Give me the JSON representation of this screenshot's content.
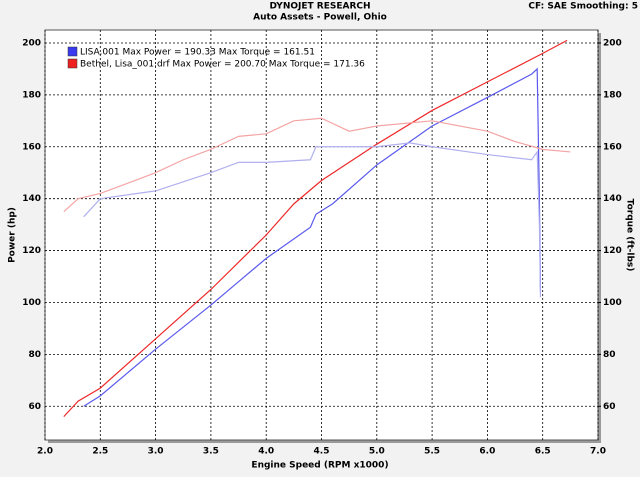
{
  "chart_data": {
    "type": "line",
    "title": "DYNOJET RESEARCH",
    "subtitle": "Auto Assets - Powell, Ohio",
    "settings_text": "CF: SAE  Smoothing: 5",
    "x_label": "Engine Speed (RPM x1000)",
    "y_label": "Power (hp)",
    "y2_label": "Torque (ft-lbs)",
    "xlim": [
      2,
      7
    ],
    "xticks": [
      {
        "value": 2,
        "label": "2.0"
      },
      {
        "value": 2.5,
        "label": "2.5"
      },
      {
        "value": 3,
        "label": "3.0"
      },
      {
        "value": 3.5,
        "label": "3.5"
      },
      {
        "value": 4,
        "label": "4.0"
      },
      {
        "value": 4.5,
        "label": "4.5"
      },
      {
        "value": 5,
        "label": "5.0"
      },
      {
        "value": 5.5,
        "label": "5.5"
      },
      {
        "value": 6,
        "label": "6.0"
      },
      {
        "value": 6.5,
        "label": "6.5"
      },
      {
        "value": 7,
        "label": "7.0"
      }
    ],
    "ylim": [
      47,
      205
    ],
    "yticks": [
      60,
      80,
      100,
      120,
      140,
      160,
      180,
      200
    ],
    "y2lim": [
      47,
      205
    ],
    "y2ticks": [
      60,
      80,
      100,
      120,
      140,
      160,
      180,
      200
    ],
    "grid": true,
    "legend": [
      {
        "label": "LISA.001 Max Power = 190.33 Max Torque = 161.51",
        "color": "#3a3aee"
      },
      {
        "label": "Bethel, Lisa_001.drf Max Power = 200.70 Max Torque = 171.36",
        "color": "#ee2020"
      }
    ],
    "series": [
      {
        "color": "#5a5aee",
        "x": [
          2.35,
          2.5,
          3.0,
          3.5,
          3.75,
          4.0,
          4.4,
          4.45,
          4.6,
          5.0,
          5.5,
          6.0,
          6.4,
          6.45,
          6.47,
          6.48
        ],
        "values": [
          60,
          64,
          82,
          99,
          108,
          117,
          129,
          134,
          138,
          153,
          168,
          179,
          188,
          190,
          140,
          104
        ]
      },
      {
        "color": "#ee2828",
        "x": [
          2.17,
          2.3,
          2.5,
          3.0,
          3.5,
          4.0,
          4.25,
          4.5,
          5.0,
          5.5,
          6.0,
          6.5,
          6.72
        ],
        "values": [
          56,
          62,
          67,
          86,
          105,
          126,
          138,
          147,
          161,
          174,
          185,
          196,
          201
        ]
      },
      {
        "color": "#b0b0ee",
        "axis": "y2",
        "x": [
          2.35,
          2.5,
          3.0,
          3.5,
          3.75,
          4.0,
          4.4,
          4.45,
          5.0,
          5.3,
          5.5,
          6.0,
          6.4,
          6.45,
          6.47,
          6.48
        ],
        "values": [
          133,
          140,
          143,
          150,
          154,
          154,
          155,
          160,
          160,
          161.5,
          160,
          157,
          155,
          158,
          130,
          102
        ]
      },
      {
        "color": "#f4a4a4",
        "axis": "y2",
        "x": [
          2.17,
          2.3,
          2.5,
          3.0,
          3.25,
          3.5,
          3.75,
          4.0,
          4.25,
          4.5,
          4.75,
          5.0,
          5.5,
          6.0,
          6.25,
          6.5,
          6.75
        ],
        "values": [
          135,
          140,
          142,
          150,
          155,
          159,
          164,
          165,
          170,
          171,
          166,
          168,
          170,
          166,
          162,
          159,
          158
        ]
      }
    ]
  }
}
